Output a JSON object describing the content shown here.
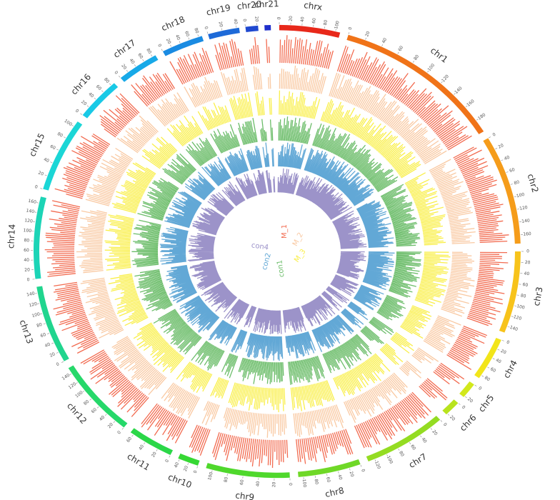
{
  "figure": {
    "chromosomes": [
      {
        "name": "chrx",
        "ticks": [
          "0",
          "20",
          "40",
          "60",
          "80",
          "100"
        ],
        "color": "#e8281a"
      },
      {
        "name": "chr1",
        "ticks": [
          "0",
          "20",
          "40",
          "60",
          "80",
          "100",
          "120",
          "140",
          "160",
          "180"
        ],
        "color": "#f07318"
      },
      {
        "name": "chr2",
        "ticks": [
          "0",
          "20",
          "40",
          "60",
          "80",
          "100",
          "120",
          "140",
          "160"
        ],
        "color": "#f59c1a"
      },
      {
        "name": "chr3",
        "ticks": [
          "0",
          "20",
          "40",
          "60",
          "80",
          "100",
          "120",
          "140"
        ],
        "color": "#f7c31b"
      },
      {
        "name": "chr4",
        "ticks": [
          "0",
          "20",
          "40",
          "60",
          "80"
        ],
        "color": "#f2e51a"
      },
      {
        "name": "chr5",
        "ticks": [
          "0",
          "20"
        ],
        "color": "#d2e81c"
      },
      {
        "name": "chr6",
        "ticks": [
          "0",
          "20"
        ],
        "color": "#b8e31e"
      },
      {
        "name": "chr7",
        "ticks": [
          "0",
          "20",
          "40",
          "60",
          "80",
          "100",
          "120"
        ],
        "color": "#94dc22"
      },
      {
        "name": "chr8",
        "ticks": [
          "0",
          "20",
          "40",
          "60",
          "80",
          "100"
        ],
        "color": "#6fd827"
      },
      {
        "name": "chr9",
        "ticks": [
          "0",
          "20",
          "40",
          "60",
          "80",
          "100"
        ],
        "color": "#4fd82c"
      },
      {
        "name": "chr10",
        "ticks": [
          "0",
          "20",
          "40"
        ],
        "color": "#36d834"
      },
      {
        "name": "chr11",
        "ticks": [
          "0",
          "20",
          "40",
          "60"
        ],
        "color": "#2bd748"
      },
      {
        "name": "chr12",
        "ticks": [
          "0",
          "20",
          "40",
          "60",
          "80",
          "100",
          "120",
          "140"
        ],
        "color": "#26d86a"
      },
      {
        "name": "chr13",
        "ticks": [
          "0",
          "20",
          "40",
          "60",
          "80",
          "100",
          "120",
          "140"
        ],
        "color": "#20d58e"
      },
      {
        "name": "chr14",
        "ticks": [
          "0",
          "20",
          "40",
          "60",
          "80",
          "100",
          "120",
          "140",
          "160"
        ],
        "color": "#1cd4b6"
      },
      {
        "name": "chr15",
        "ticks": [
          "0",
          "20",
          "40",
          "60",
          "80",
          "100"
        ],
        "color": "#1bd6d6"
      },
      {
        "name": "chr16",
        "ticks": [
          "0",
          "20",
          "40",
          "60",
          "80"
        ],
        "color": "#19c9e6"
      },
      {
        "name": "chr17",
        "ticks": [
          "0",
          "20",
          "40",
          "60",
          "80"
        ],
        "color": "#17a9e8"
      },
      {
        "name": "chr18",
        "ticks": [
          "0",
          "20",
          "40",
          "60",
          "80"
        ],
        "color": "#1a8be2"
      },
      {
        "name": "chr19",
        "ticks": [
          "0",
          "20",
          "40"
        ],
        "color": "#1e6ad8"
      },
      {
        "name": "chr20",
        "ticks": [
          "0",
          "20"
        ],
        "color": "#1f49d0"
      },
      {
        "name": "chr21",
        "ticks": [],
        "color": "#1f2fcb"
      }
    ],
    "tracks": [
      {
        "name": "M_1",
        "color": "#f26b50"
      },
      {
        "name": "M_2",
        "color": "#f9c9a2"
      },
      {
        "name": "M_3",
        "color": "#f9ef4a"
      },
      {
        "name": "con1",
        "color": "#6cbd6a"
      },
      {
        "name": "con2",
        "color": "#62a8d6"
      },
      {
        "name": "con4",
        "color": "#9c93c9"
      }
    ]
  }
}
